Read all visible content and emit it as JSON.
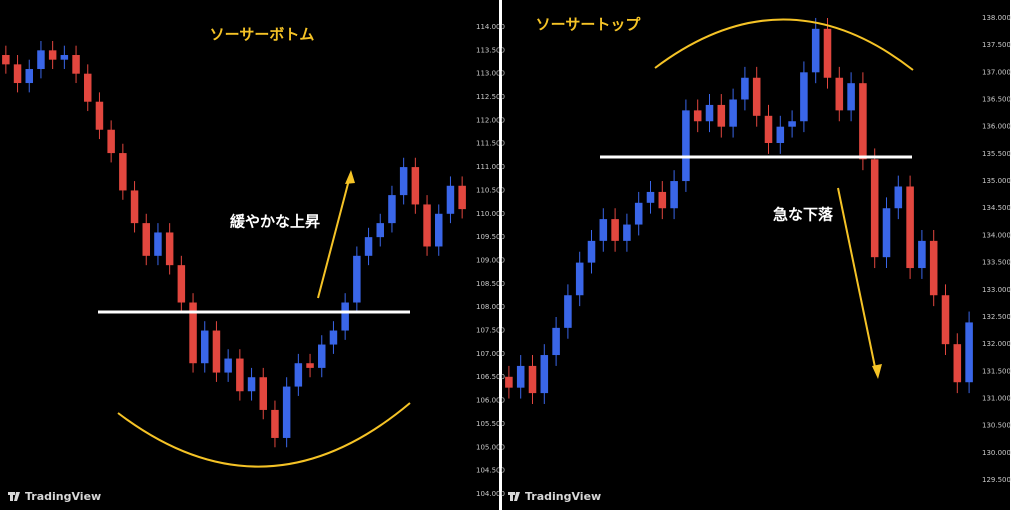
{
  "chart_data": [
    {
      "type": "candlestick",
      "title": "ソーサーボトム",
      "annotations": [
        "緩やかな上昇"
      ],
      "watermark": "TradingView",
      "up_color": "#3a66e8",
      "down_color": "#e2473f",
      "ylim": [
        103.657,
        114.578
      ],
      "yticks": [
        {
          "value": 104,
          "label": "104.000"
        },
        {
          "value": 104.5,
          "label": "104.500"
        },
        {
          "value": 105,
          "label": "105.000"
        },
        {
          "value": 105.5,
          "label": "105.500"
        },
        {
          "value": 106,
          "label": "106.000"
        },
        {
          "value": 106.5,
          "label": "106.500"
        },
        {
          "value": 107,
          "label": "107.000"
        },
        {
          "value": 107.5,
          "label": "107.500"
        },
        {
          "value": 108,
          "label": "108.000"
        },
        {
          "value": 108.5,
          "label": "108.500"
        },
        {
          "value": 109,
          "label": "109.000"
        },
        {
          "value": 109.5,
          "label": "109.500"
        },
        {
          "value": 110,
          "label": "110.000"
        },
        {
          "value": 110.5,
          "label": "110.500"
        },
        {
          "value": 111,
          "label": "111.000"
        },
        {
          "value": 111.5,
          "label": "111.500"
        },
        {
          "value": 112,
          "label": "112.000"
        },
        {
          "value": 112.5,
          "label": "112.500"
        },
        {
          "value": 113,
          "label": "113.000"
        },
        {
          "value": 113.5,
          "label": "113.500"
        },
        {
          "value": 114,
          "label": "114.000"
        }
      ],
      "open": [
        113.4,
        113.2,
        112.8,
        113.1,
        113.5,
        113.3,
        113.4,
        113.0,
        112.4,
        111.8,
        111.3,
        110.5,
        109.8,
        109.1,
        109.6,
        108.9,
        108.1,
        106.8,
        107.5,
        106.6,
        106.9,
        106.2,
        106.5,
        105.8,
        105.2,
        106.3,
        106.8,
        106.7,
        107.2,
        107.5,
        108.1,
        109.1,
        109.5,
        109.8,
        110.4,
        111.0,
        110.2,
        109.3,
        110.0,
        110.6
      ],
      "high": [
        113.6,
        113.4,
        113.3,
        113.7,
        113.7,
        113.6,
        113.6,
        113.2,
        112.6,
        112.0,
        111.5,
        110.7,
        110.0,
        109.8,
        109.8,
        109.1,
        108.3,
        107.7,
        107.7,
        107.1,
        107.1,
        106.7,
        106.7,
        106.0,
        106.5,
        107.0,
        107.0,
        107.4,
        107.7,
        108.3,
        109.3,
        109.7,
        110.0,
        110.6,
        111.2,
        111.2,
        110.4,
        110.2,
        110.8,
        110.8
      ],
      "low": [
        113.0,
        112.6,
        112.6,
        112.9,
        113.1,
        113.1,
        112.8,
        112.2,
        111.6,
        111.1,
        110.3,
        109.6,
        108.9,
        108.9,
        108.7,
        107.9,
        106.6,
        106.6,
        106.4,
        106.4,
        106.0,
        106.0,
        105.6,
        105.0,
        105.0,
        106.1,
        106.5,
        106.5,
        107.0,
        107.3,
        107.9,
        108.9,
        109.3,
        109.6,
        110.2,
        110.0,
        109.1,
        109.1,
        109.8,
        109.9
      ],
      "close": [
        113.2,
        112.8,
        113.1,
        113.5,
        113.3,
        113.4,
        113.0,
        112.4,
        111.8,
        111.3,
        110.5,
        109.8,
        109.1,
        109.6,
        108.9,
        108.1,
        106.8,
        107.5,
        106.6,
        106.9,
        106.2,
        106.5,
        105.8,
        105.2,
        106.3,
        106.8,
        106.7,
        107.2,
        107.5,
        108.1,
        109.1,
        109.5,
        109.8,
        110.4,
        111.0,
        110.2,
        109.3,
        110.0,
        110.6,
        110.1
      ]
    },
    {
      "type": "candlestick",
      "title": "ソーサートップ",
      "annotations": [
        "急な下落"
      ],
      "watermark": "TradingView",
      "up_color": "#3a66e8",
      "down_color": "#e2473f",
      "ylim": [
        128.95,
        138.33
      ],
      "yticks": [
        {
          "value": 129.5,
          "label": "129.500"
        },
        {
          "value": 130,
          "label": "130.000"
        },
        {
          "value": 130.5,
          "label": "130.500"
        },
        {
          "value": 131,
          "label": "131.000"
        },
        {
          "value": 131.5,
          "label": "131.500"
        },
        {
          "value": 132,
          "label": "132.000"
        },
        {
          "value": 132.5,
          "label": "132.500"
        },
        {
          "value": 133,
          "label": "133.000"
        },
        {
          "value": 133.5,
          "label": "133.500"
        },
        {
          "value": 134,
          "label": "134.000"
        },
        {
          "value": 134.5,
          "label": "134.500"
        },
        {
          "value": 135,
          "label": "135.000"
        },
        {
          "value": 135.5,
          "label": "135.500"
        },
        {
          "value": 136,
          "label": "136.000"
        },
        {
          "value": 136.5,
          "label": "136.500"
        },
        {
          "value": 137,
          "label": "137.000"
        },
        {
          "value": 137.5,
          "label": "137.500"
        },
        {
          "value": 138,
          "label": "138.000"
        }
      ],
      "open": [
        131.4,
        131.2,
        131.6,
        131.1,
        131.8,
        132.3,
        132.9,
        133.5,
        133.9,
        134.3,
        133.9,
        134.2,
        134.6,
        134.8,
        134.5,
        135.0,
        136.3,
        136.1,
        136.4,
        136.0,
        136.5,
        136.9,
        136.2,
        135.7,
        136.0,
        136.1,
        137.0,
        137.8,
        136.9,
        136.3,
        136.8,
        135.4,
        133.6,
        134.5,
        134.9,
        133.4,
        133.9,
        132.9,
        132.0,
        131.3
      ],
      "high": [
        131.6,
        131.8,
        131.8,
        132.0,
        132.5,
        133.1,
        133.7,
        134.1,
        134.5,
        134.5,
        134.4,
        134.8,
        135.0,
        135.0,
        135.2,
        136.5,
        136.5,
        136.6,
        136.6,
        136.7,
        137.1,
        137.1,
        136.4,
        136.2,
        136.3,
        137.2,
        138.0,
        138.0,
        137.1,
        137.0,
        137.0,
        135.6,
        134.7,
        135.1,
        135.1,
        134.1,
        134.1,
        133.1,
        132.2,
        132.6
      ],
      "low": [
        131.0,
        131.0,
        130.9,
        130.9,
        131.6,
        132.1,
        132.7,
        133.3,
        133.7,
        133.7,
        133.7,
        134.0,
        134.4,
        134.3,
        134.3,
        134.8,
        135.9,
        135.9,
        135.8,
        135.8,
        136.3,
        136.0,
        135.5,
        135.5,
        135.8,
        135.9,
        136.8,
        136.7,
        136.1,
        136.1,
        135.2,
        133.4,
        133.4,
        134.3,
        133.2,
        133.2,
        132.7,
        131.8,
        131.1,
        131.1
      ],
      "close": [
        131.2,
        131.6,
        131.1,
        131.8,
        132.3,
        132.9,
        133.5,
        133.9,
        134.3,
        133.9,
        134.2,
        134.6,
        134.8,
        134.5,
        135.0,
        136.3,
        136.1,
        136.4,
        136.0,
        136.5,
        136.9,
        136.2,
        135.7,
        136.0,
        136.1,
        137.0,
        137.8,
        136.9,
        136.3,
        136.8,
        135.4,
        133.6,
        134.5,
        134.9,
        133.4,
        133.9,
        132.9,
        132.0,
        131.3,
        132.4
      ]
    }
  ]
}
